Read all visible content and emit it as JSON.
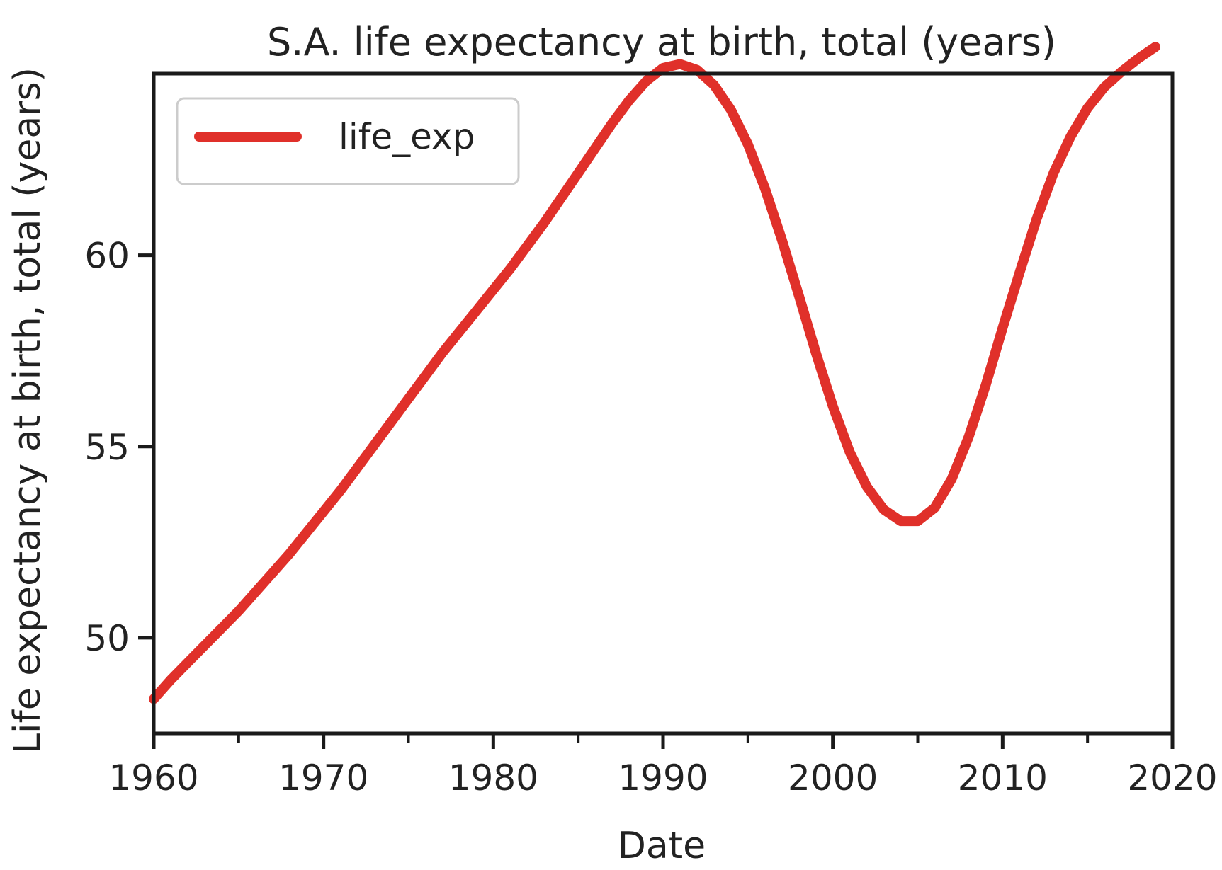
{
  "chart_data": {
    "type": "line",
    "title": "S.A. life expectancy at birth, total (years)",
    "xlabel": "Date",
    "ylabel": "Life expectancy at birth, total (years)",
    "xlim": [
      1960,
      2020
    ],
    "ylim": [
      47.5,
      64.75
    ],
    "x_ticks": [
      1960,
      1970,
      1980,
      1990,
      2000,
      2010,
      2020
    ],
    "x_minor_ticks": [
      1965,
      1975,
      1985,
      1995,
      2005,
      2015
    ],
    "y_ticks": [
      50,
      55,
      60
    ],
    "grid": false,
    "legend": {
      "position": "upper-left",
      "entries": [
        "life_exp"
      ]
    },
    "series": [
      {
        "name": "life_exp",
        "color": "#e0302a",
        "x": [
          1960,
          1961,
          1962,
          1963,
          1964,
          1965,
          1966,
          1967,
          1968,
          1969,
          1970,
          1971,
          1972,
          1973,
          1974,
          1975,
          1976,
          1977,
          1978,
          1979,
          1980,
          1981,
          1982,
          1983,
          1984,
          1985,
          1986,
          1987,
          1988,
          1989,
          1990,
          1991,
          1992,
          1993,
          1994,
          1995,
          1996,
          1997,
          1998,
          1999,
          2000,
          2001,
          2002,
          2003,
          2004,
          2005,
          2006,
          2007,
          2008,
          2009,
          2010,
          2011,
          2012,
          2013,
          2014,
          2015,
          2016,
          2017,
          2018,
          2019
        ],
        "values": [
          48.4,
          48.9,
          49.35,
          49.8,
          50.25,
          50.7,
          51.2,
          51.7,
          52.2,
          52.75,
          53.3,
          53.85,
          54.45,
          55.05,
          55.65,
          56.25,
          56.85,
          57.45,
          58.0,
          58.55,
          59.1,
          59.65,
          60.25,
          60.85,
          61.5,
          62.15,
          62.8,
          63.45,
          64.05,
          64.55,
          64.9,
          65.0,
          64.85,
          64.45,
          63.8,
          62.9,
          61.75,
          60.4,
          58.95,
          57.45,
          56.05,
          54.85,
          53.95,
          53.35,
          53.05,
          53.05,
          53.4,
          54.15,
          55.25,
          56.6,
          58.1,
          59.55,
          60.95,
          62.15,
          63.1,
          63.85,
          64.4,
          64.8,
          65.15,
          65.45
        ]
      }
    ]
  }
}
